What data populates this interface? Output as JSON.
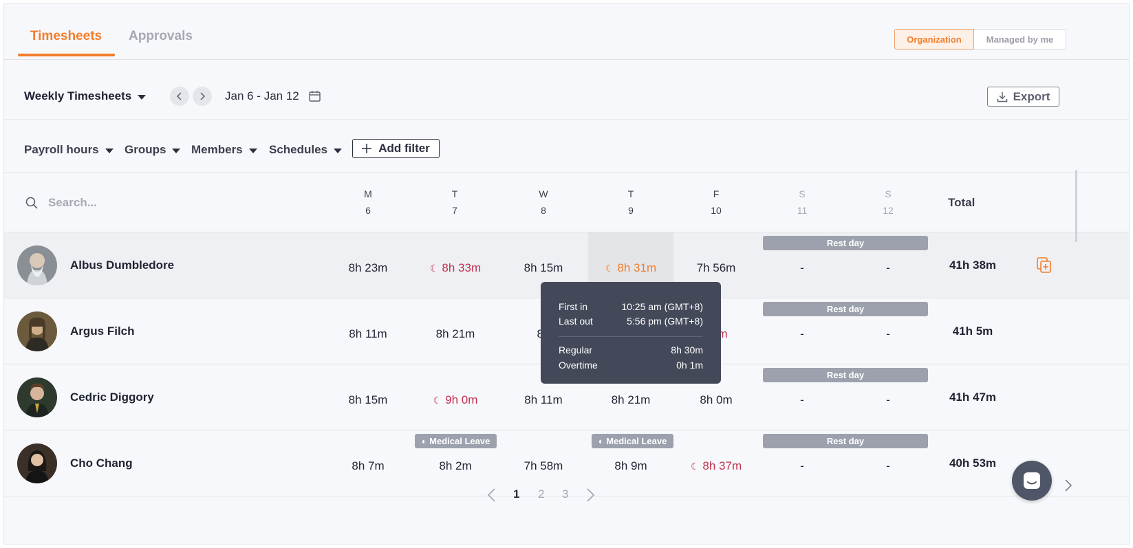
{
  "tabs": {
    "timesheets": "Timesheets",
    "approvals": "Approvals"
  },
  "scope": {
    "organization": "Organization",
    "managed": "Managed by me"
  },
  "toolbar": {
    "view": "Weekly Timesheets",
    "prev_icon": "chevron-left-icon",
    "next_icon": "chevron-right-icon",
    "date_range": "Jan 6 - Jan 12",
    "export": "Export"
  },
  "filters": {
    "payroll": "Payroll hours",
    "groups": "Groups",
    "members": "Members",
    "schedules": "Schedules",
    "add": "Add filter"
  },
  "table": {
    "search_placeholder": "Search...",
    "days": [
      {
        "letter": "M",
        "date": "6"
      },
      {
        "letter": "T",
        "date": "7"
      },
      {
        "letter": "W",
        "date": "8"
      },
      {
        "letter": "T",
        "date": "9"
      },
      {
        "letter": "F",
        "date": "10"
      },
      {
        "letter": "S",
        "date": "11"
      },
      {
        "letter": "S",
        "date": "12"
      }
    ],
    "total_label": "Total",
    "rest_day": "Rest day",
    "medical_leave": "Medical Leave",
    "rows": [
      {
        "name": "Albus Dumbledore",
        "cells": [
          "8h 23m",
          "8h 33m",
          "8h 15m",
          "8h 31m",
          "7h 56m",
          "-",
          "-"
        ],
        "total": "41h 38m"
      },
      {
        "name": "Argus Filch",
        "cells": [
          "8h 11m",
          "8h 21m",
          "8h",
          "",
          "32m",
          "-",
          "-"
        ],
        "total": "41h 5m"
      },
      {
        "name": "Cedric Diggory",
        "cells": [
          "8h 15m",
          "9h 0m",
          "8h 11m",
          "8h 21m",
          "8h 0m",
          "-",
          "-"
        ],
        "total": "41h 47m"
      },
      {
        "name": "Cho Chang",
        "cells": [
          "8h 7m",
          "8h 2m",
          "7h 58m",
          "8h 9m",
          "8h 37m",
          "-",
          "-"
        ],
        "total": "40h 53m"
      }
    ]
  },
  "tooltip": {
    "first_in_label": "First in",
    "first_in_value": "10:25 am (GMT+8)",
    "last_out_label": "Last out",
    "last_out_value": "5:56 pm (GMT+8)",
    "regular_label": "Regular",
    "regular_value": "8h 30m",
    "overtime_label": "Overtime",
    "overtime_value": "0h 1m"
  },
  "pagination": {
    "pages": [
      "1",
      "2",
      "3"
    ],
    "current": "1"
  },
  "colors": {
    "accent": "#f47d2b",
    "overtime": "#c2314f",
    "badge": "#9da1ae",
    "tooltip": "#434959"
  }
}
